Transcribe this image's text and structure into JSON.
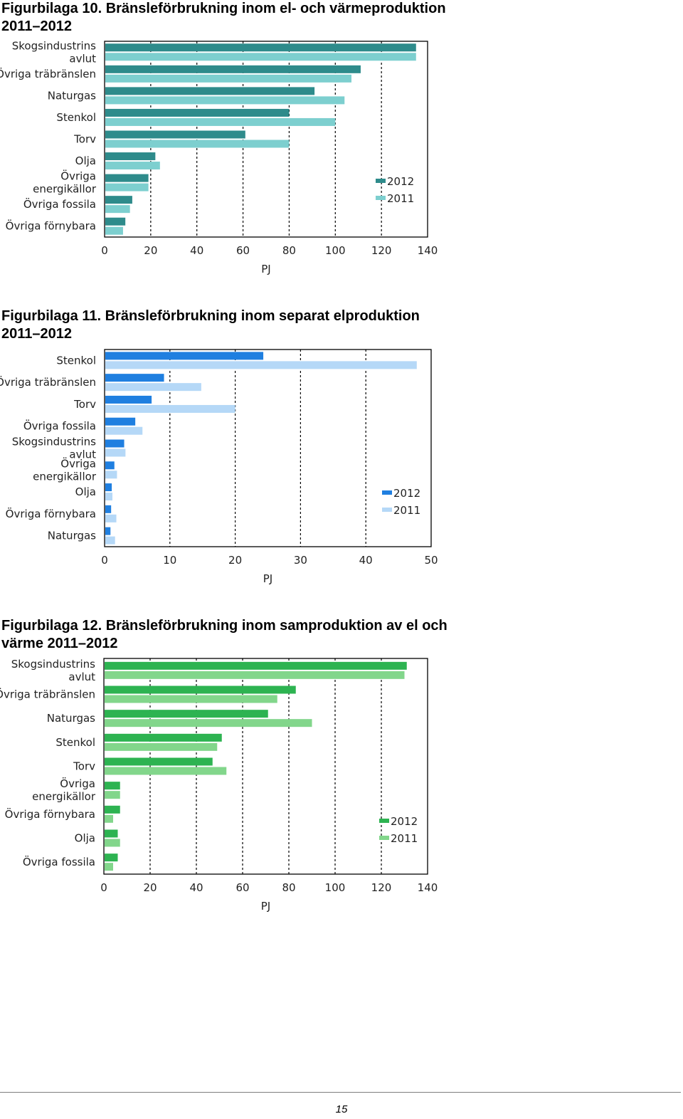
{
  "figures": [
    {
      "title_line1": "Figurbilaga 10. Bränsleförbrukning inom el- och värmeproduktion",
      "title_line2": "2011–2012"
    },
    {
      "title_line1": "Figurbilaga 11. Bränsleförbrukning inom separat elproduktion",
      "title_line2": "2011–2012"
    },
    {
      "title_line1": "Figurbilaga 12. Bränsleförbrukning inom samproduktion av el och",
      "title_line2": "värme 2011–2012"
    }
  ],
  "page_number": "15",
  "chart_data": [
    {
      "type": "bar",
      "orientation": "horizontal",
      "categories": [
        [
          "Skogsindustrins",
          "avlut"
        ],
        [
          "Övriga träbränslen"
        ],
        [
          "Naturgas"
        ],
        [
          "Stenkol"
        ],
        [
          "Torv"
        ],
        [
          "Olja"
        ],
        [
          "Övriga",
          "energikällor"
        ],
        [
          "Övriga fossila"
        ],
        [
          "Övriga förnybara"
        ]
      ],
      "series": [
        {
          "name": "2012",
          "color": "#2e8b8b",
          "values": [
            135,
            111,
            91,
            80,
            61,
            22,
            19,
            12,
            9
          ]
        },
        {
          "name": "2011",
          "color": "#7dcfcf",
          "values": [
            135,
            107,
            104,
            100,
            80,
            24,
            19,
            11,
            8
          ]
        }
      ],
      "xlabel": "PJ",
      "xlim": [
        0,
        140
      ],
      "xticks": [
        0,
        20,
        40,
        60,
        80,
        100,
        120,
        140
      ],
      "grid": "vertical dashed",
      "legend": "right"
    },
    {
      "type": "bar",
      "orientation": "horizontal",
      "categories": [
        [
          "Stenkol"
        ],
        [
          "Övriga träbränslen"
        ],
        [
          "Torv"
        ],
        [
          "Övriga fossila"
        ],
        [
          "Skogsindustrins",
          "avlut"
        ],
        [
          "Övriga",
          "energikällor"
        ],
        [
          "Olja"
        ],
        [
          "Övriga förnybara"
        ],
        [
          "Naturgas"
        ]
      ],
      "series": [
        {
          "name": "2012",
          "color": "#1f7fe0",
          "values": [
            24.3,
            9.1,
            7.2,
            4.7,
            3.0,
            1.5,
            1.1,
            1.0,
            0.9
          ]
        },
        {
          "name": "2011",
          "color": "#b5d8f7",
          "values": [
            47.8,
            14.8,
            20.0,
            5.8,
            3.2,
            1.9,
            1.2,
            1.8,
            1.6
          ]
        }
      ],
      "xlabel": "PJ",
      "xlim": [
        0,
        50
      ],
      "xticks": [
        0,
        10,
        20,
        30,
        40,
        50
      ],
      "grid": "vertical dashed",
      "legend": "right"
    },
    {
      "type": "bar",
      "orientation": "horizontal",
      "categories": [
        [
          "Skogsindustrins",
          "avlut"
        ],
        [
          "Övriga träbränslen"
        ],
        [
          "Naturgas"
        ],
        [
          "Stenkol"
        ],
        [
          "Torv"
        ],
        [
          "Övriga",
          "energikällor"
        ],
        [
          "Övriga förnybara"
        ],
        [
          "Olja"
        ],
        [
          "Övriga fossila"
        ]
      ],
      "series": [
        {
          "name": "2012",
          "color": "#2db351",
          "values": [
            131,
            83,
            71,
            51,
            47,
            7,
            7,
            6,
            6
          ]
        },
        {
          "name": "2011",
          "color": "#82d68b",
          "values": [
            130,
            75,
            90,
            49,
            53,
            7,
            4,
            7,
            4
          ]
        }
      ],
      "xlabel": "PJ",
      "xlim": [
        0,
        140
      ],
      "xticks": [
        0,
        20,
        40,
        60,
        80,
        100,
        120,
        140
      ],
      "grid": "vertical dashed",
      "legend": "right"
    }
  ]
}
